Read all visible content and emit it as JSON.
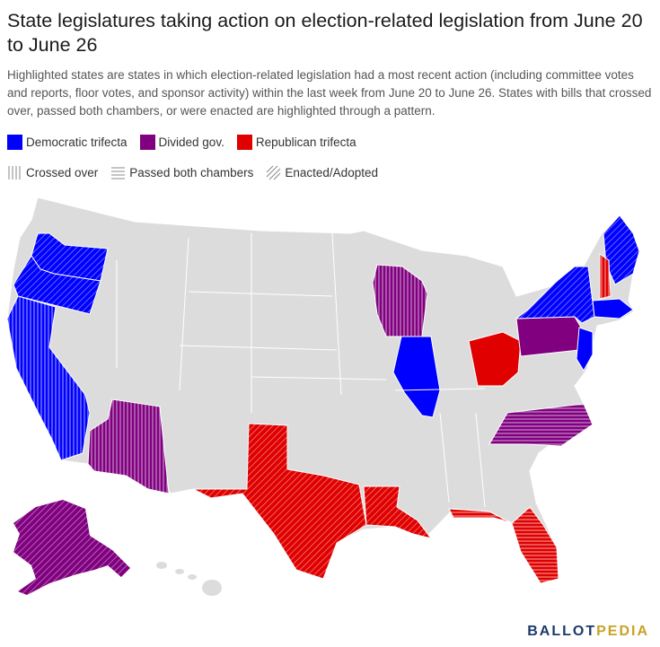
{
  "title": "State legislatures taking action on election-related legislation from June 20 to June 26",
  "subtitle": "Highlighted states are states in which election-related legislation had a most recent action (including committee votes and reports, floor votes, and sponsor activity) within the last week from June 20 to June 26. States with bills that crossed over, passed both chambers, or were enacted are highlighted through a pattern.",
  "legend": {
    "colors": [
      {
        "label": "Democratic trifecta",
        "color": "#0000ff"
      },
      {
        "label": "Divided gov.",
        "color": "#800080"
      },
      {
        "label": "Republican trifecta",
        "color": "#e00000"
      }
    ],
    "patterns": [
      {
        "label": "Crossed over",
        "pattern": "vertical"
      },
      {
        "label": "Passed both chambers",
        "pattern": "horizontal"
      },
      {
        "label": "Enacted/Adopted",
        "pattern": "diagonal"
      }
    ]
  },
  "base_color": "#dcdcdc",
  "highlighted_states": [
    {
      "state": "WA",
      "party": "Democratic trifecta",
      "pattern": "diagonal"
    },
    {
      "state": "OR",
      "party": "Democratic trifecta",
      "pattern": "diagonal"
    },
    {
      "state": "CA",
      "party": "Democratic trifecta",
      "pattern": "vertical"
    },
    {
      "state": "AZ",
      "party": "Divided gov.",
      "pattern": "vertical"
    },
    {
      "state": "AK",
      "party": "Divided gov.",
      "pattern": "diagonal"
    },
    {
      "state": "TX",
      "party": "Republican trifecta",
      "pattern": "diagonal"
    },
    {
      "state": "LA",
      "party": "Republican trifecta",
      "pattern": "diagonal"
    },
    {
      "state": "FL",
      "party": "Republican trifecta",
      "pattern": "horizontal"
    },
    {
      "state": "WI",
      "party": "Divided gov.",
      "pattern": "vertical"
    },
    {
      "state": "IL",
      "party": "Democratic trifecta",
      "pattern": "none"
    },
    {
      "state": "OH",
      "party": "Republican trifecta",
      "pattern": "none"
    },
    {
      "state": "PA",
      "party": "Divided gov.",
      "pattern": "none"
    },
    {
      "state": "NC",
      "party": "Divided gov.",
      "pattern": "horizontal"
    },
    {
      "state": "NY",
      "party": "Democratic trifecta",
      "pattern": "diagonal"
    },
    {
      "state": "NJ",
      "party": "Democratic trifecta",
      "pattern": "none"
    },
    {
      "state": "MA",
      "party": "Democratic trifecta",
      "pattern": "none"
    },
    {
      "state": "ME",
      "party": "Democratic trifecta",
      "pattern": "diagonal"
    },
    {
      "state": "NH",
      "party": "Republican trifecta",
      "pattern": "vertical"
    }
  ],
  "logo": {
    "part1": "BALLOT",
    "part2": "PEDIA"
  }
}
